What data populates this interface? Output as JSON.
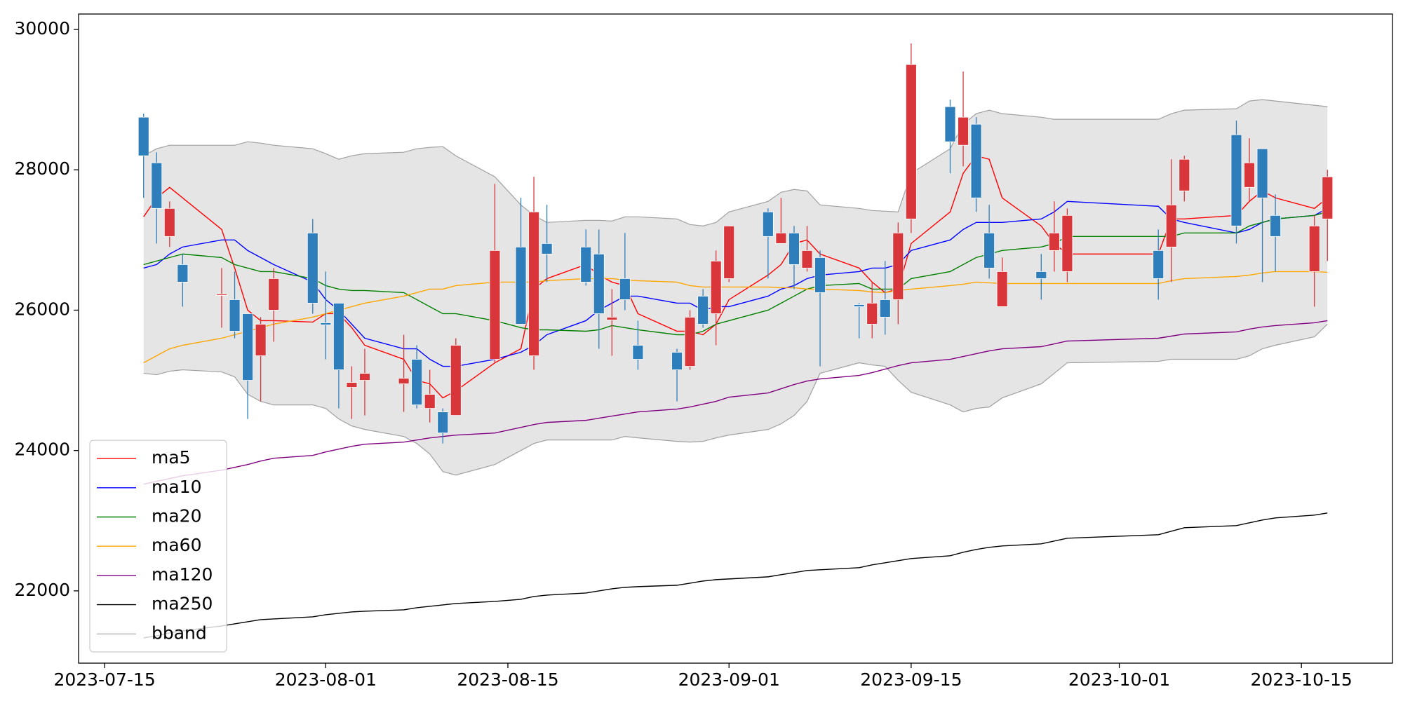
{
  "chart_data": {
    "type": "candlestick",
    "x": [
      "2023-07-18",
      "2023-07-19",
      "2023-07-20",
      "2023-07-21",
      "2023-07-24",
      "2023-07-25",
      "2023-07-26",
      "2023-07-27",
      "2023-07-28",
      "2023-07-31",
      "2023-08-01",
      "2023-08-02",
      "2023-08-03",
      "2023-08-04",
      "2023-08-07",
      "2023-08-08",
      "2023-08-09",
      "2023-08-10",
      "2023-08-11",
      "2023-08-14",
      "2023-08-16",
      "2023-08-17",
      "2023-08-18",
      "2023-08-21",
      "2023-08-22",
      "2023-08-23",
      "2023-08-24",
      "2023-08-25",
      "2023-08-28",
      "2023-08-29",
      "2023-08-30",
      "2023-08-31",
      "2023-09-01",
      "2023-09-04",
      "2023-09-05",
      "2023-09-06",
      "2023-09-07",
      "2023-09-08",
      "2023-09-11",
      "2023-09-12",
      "2023-09-13",
      "2023-09-14",
      "2023-09-15",
      "2023-09-18",
      "2023-09-19",
      "2023-09-20",
      "2023-09-21",
      "2023-09-22",
      "2023-09-25",
      "2023-09-26",
      "2023-09-27",
      "2023-10-04",
      "2023-10-05",
      "2023-10-06",
      "2023-10-10",
      "2023-10-11",
      "2023-10-12",
      "2023-10-13",
      "2023-10-16",
      "2023-10-17"
    ],
    "xlim": [
      "2023-07-13",
      "2023-10-22"
    ],
    "xticks": [
      "2023-07-15",
      "2023-08-01",
      "2023-08-15",
      "2023-09-01",
      "2023-09-15",
      "2023-10-01",
      "2023-10-15"
    ],
    "ylim": [
      20970,
      30220
    ],
    "yticks": [
      22000,
      24000,
      26000,
      28000,
      30000
    ],
    "legend": "lower left",
    "candles": {
      "up_color": "#d9363b",
      "down_color": "#2e7ebb",
      "open": [
        28750,
        28100,
        27050,
        26650,
        26210,
        26150,
        25950,
        25350,
        26000,
        27100,
        25820,
        26100,
        24900,
        25000,
        24950,
        25300,
        24600,
        24550,
        24500,
        25300,
        26900,
        25350,
        26950,
        26900,
        26800,
        25860,
        26450,
        25500,
        25400,
        25200,
        26200,
        25950,
        26450,
        27400,
        26950,
        27100,
        26600,
        26750,
        26080,
        25800,
        26150,
        26150,
        27300,
        28900,
        28350,
        28650,
        27100,
        26050,
        26550,
        26850,
        26550,
        26850,
        26900,
        27700,
        28500,
        27750,
        28300,
        27350,
        26550,
        27300
      ],
      "high": [
        28800,
        28250,
        27550,
        26800,
        26600,
        26550,
        25950,
        25900,
        26600,
        27300,
        26550,
        26100,
        25200,
        25450,
        25650,
        25500,
        25150,
        24600,
        25600,
        27800,
        27600,
        27900,
        27500,
        27150,
        27150,
        26300,
        27100,
        25850,
        25450,
        26000,
        26300,
        26850,
        27200,
        27450,
        27600,
        27200,
        27200,
        26850,
        26100,
        26400,
        26700,
        27250,
        29800,
        29000,
        29400,
        28750,
        27500,
        26750,
        26800,
        27550,
        27450,
        27150,
        28150,
        28200,
        28700,
        28450,
        28300,
        27650,
        27350,
        28000
      ],
      "low": [
        27600,
        26950,
        26900,
        26050,
        25750,
        25600,
        24450,
        24700,
        25550,
        25950,
        25300,
        24600,
        24450,
        24500,
        24550,
        24600,
        24400,
        24100,
        24500,
        25250,
        25800,
        25150,
        26400,
        26350,
        25450,
        25350,
        26000,
        25150,
        24700,
        25150,
        25750,
        25500,
        26400,
        26450,
        26950,
        26300,
        26550,
        25200,
        25600,
        25600,
        25650,
        25800,
        27100,
        27950,
        28050,
        27400,
        26450,
        26050,
        26150,
        26550,
        26400,
        26150,
        26400,
        27550,
        26950,
        27550,
        26400,
        26550,
        26050,
        26700
      ],
      "close": [
        28200,
        27450,
        27450,
        26400,
        26230,
        25700,
        25000,
        25800,
        26450,
        26100,
        25790,
        25150,
        24970,
        25100,
        25030,
        24650,
        24800,
        24250,
        25500,
        26850,
        25800,
        27400,
        26800,
        26400,
        25950,
        25900,
        26150,
        25300,
        25150,
        25900,
        25800,
        26700,
        27200,
        27050,
        27100,
        26650,
        26850,
        26250,
        26050,
        26100,
        25900,
        27100,
        29500,
        28400,
        28750,
        27600,
        26600,
        26550,
        26450,
        27100,
        27350,
        26450,
        27500,
        28150,
        27200,
        28100,
        27600,
        27050,
        27200,
        27900
      ]
    },
    "series": [
      {
        "name": "ma5",
        "color": "#ff0000",
        "values": [
          27330,
          27600,
          27750,
          27600,
          27150,
          26600,
          26000,
          25850,
          25850,
          25830,
          25950,
          25950,
          25750,
          25500,
          25300,
          25000,
          24950,
          24750,
          24850,
          25250,
          25450,
          26300,
          26450,
          26650,
          26500,
          26400,
          26350,
          25950,
          25700,
          25700,
          25650,
          25800,
          26150,
          26500,
          26650,
          26950,
          27000,
          26800,
          26600,
          26400,
          26250,
          26300,
          26950,
          27400,
          27950,
          28200,
          28150,
          27600,
          27200,
          26950,
          26800,
          26800,
          27300,
          27300,
          27350,
          27550,
          27700,
          27600,
          27450,
          27600
        ]
      },
      {
        "name": "ma10",
        "color": "#0000ff",
        "values": [
          26600,
          26650,
          26800,
          26900,
          27000,
          27000,
          26850,
          26750,
          26650,
          26400,
          26150,
          26000,
          25800,
          25600,
          25450,
          25450,
          25300,
          25200,
          25200,
          25300,
          25400,
          25500,
          25650,
          25850,
          26000,
          26100,
          26200,
          26200,
          26100,
          26100,
          26000,
          26050,
          26050,
          26200,
          26300,
          26350,
          26450,
          26500,
          26550,
          26600,
          26600,
          26650,
          26850,
          27000,
          27150,
          27250,
          27250,
          27250,
          27300,
          27400,
          27550,
          27480,
          27300,
          27250,
          27100,
          27150,
          27250,
          27300,
          27350,
          27450
        ]
      },
      {
        "name": "ma20",
        "color": "#008000",
        "values": [
          26650,
          26700,
          26750,
          26800,
          26750,
          26650,
          26600,
          26550,
          26550,
          26450,
          26350,
          26300,
          26280,
          26280,
          26250,
          26150,
          26050,
          25950,
          25950,
          25850,
          25750,
          25720,
          25720,
          25700,
          25720,
          25780,
          25750,
          25720,
          25650,
          25650,
          25700,
          25800,
          25850,
          26000,
          26100,
          26200,
          26300,
          26350,
          26380,
          26300,
          26300,
          26300,
          26450,
          26550,
          26650,
          26750,
          26800,
          26850,
          26900,
          26950,
          27050,
          27050,
          27050,
          27100,
          27100,
          27200,
          27250,
          27300,
          27350,
          27400
        ]
      },
      {
        "name": "ma60",
        "color": "#ffa500",
        "values": [
          25250,
          25350,
          25450,
          25500,
          25600,
          25650,
          25700,
          25750,
          25800,
          25900,
          25950,
          26000,
          26050,
          26100,
          26200,
          26250,
          26300,
          26300,
          26350,
          26400,
          26400,
          26400,
          26420,
          26450,
          26450,
          26450,
          26430,
          26420,
          26400,
          26350,
          26330,
          26330,
          26330,
          26330,
          26320,
          26320,
          26300,
          26300,
          26280,
          26260,
          26250,
          26280,
          26300,
          26350,
          26370,
          26400,
          26390,
          26380,
          26380,
          26380,
          26380,
          26380,
          26420,
          26450,
          26480,
          26500,
          26530,
          26550,
          26550,
          26540
        ]
      },
      {
        "name": "ma120",
        "color": "#800080",
        "values": [
          23520,
          23560,
          23600,
          23640,
          23720,
          23760,
          23800,
          23850,
          23890,
          23930,
          23980,
          24020,
          24060,
          24090,
          24120,
          24150,
          24180,
          24200,
          24220,
          24250,
          24330,
          24370,
          24400,
          24430,
          24460,
          24490,
          24520,
          24550,
          24590,
          24620,
          24660,
          24700,
          24760,
          24820,
          24880,
          24940,
          24990,
          25020,
          25070,
          25110,
          25160,
          25210,
          25250,
          25300,
          25340,
          25380,
          25420,
          25450,
          25480,
          25520,
          25560,
          25600,
          25630,
          25660,
          25690,
          25730,
          25760,
          25780,
          25820,
          25850
        ]
      },
      {
        "name": "ma250",
        "color": "#000000",
        "values": [
          21330,
          21360,
          21400,
          21430,
          21500,
          21530,
          21560,
          21590,
          21600,
          21630,
          21660,
          21680,
          21700,
          21710,
          21730,
          21760,
          21780,
          21800,
          21820,
          21850,
          21880,
          21920,
          21940,
          21970,
          22000,
          22030,
          22050,
          22060,
          22080,
          22110,
          22140,
          22160,
          22170,
          22200,
          22230,
          22260,
          22290,
          22300,
          22330,
          22370,
          22400,
          22430,
          22460,
          22500,
          22550,
          22590,
          22620,
          22640,
          22670,
          22710,
          22750,
          22800,
          22850,
          22900,
          22930,
          22970,
          23010,
          23040,
          23080,
          23110
        ]
      },
      {
        "name": "bband",
        "color": "#a0a0a0",
        "fill": "#e5e5e5",
        "upper": [
          28200,
          28300,
          28350,
          28350,
          28350,
          28350,
          28400,
          28380,
          28350,
          28300,
          28230,
          28150,
          28200,
          28230,
          28250,
          28300,
          28320,
          28330,
          28200,
          27900,
          27500,
          27350,
          27250,
          27280,
          27280,
          27270,
          27330,
          27330,
          27300,
          27220,
          27200,
          27250,
          27400,
          27550,
          27680,
          27720,
          27700,
          27500,
          27450,
          27420,
          27410,
          27400,
          27950,
          28300,
          28650,
          28800,
          28850,
          28800,
          28750,
          28720,
          28720,
          28720,
          28800,
          28850,
          28870,
          28980,
          29000,
          28980,
          28920,
          28900
        ],
        "lower": [
          25100,
          25080,
          25130,
          25150,
          25120,
          25050,
          24800,
          24700,
          24650,
          24650,
          24600,
          24450,
          24350,
          24300,
          24200,
          24100,
          23950,
          23700,
          23650,
          23800,
          24000,
          24100,
          24150,
          24150,
          24150,
          24150,
          24200,
          24180,
          24130,
          24120,
          24130,
          24180,
          24220,
          24300,
          24380,
          24500,
          24700,
          25100,
          25250,
          25220,
          25200,
          25000,
          24830,
          24650,
          24550,
          24600,
          24620,
          24750,
          24950,
          25100,
          25250,
          25270,
          25300,
          25300,
          25300,
          25350,
          25450,
          25500,
          25620,
          25800
        ]
      }
    ]
  }
}
